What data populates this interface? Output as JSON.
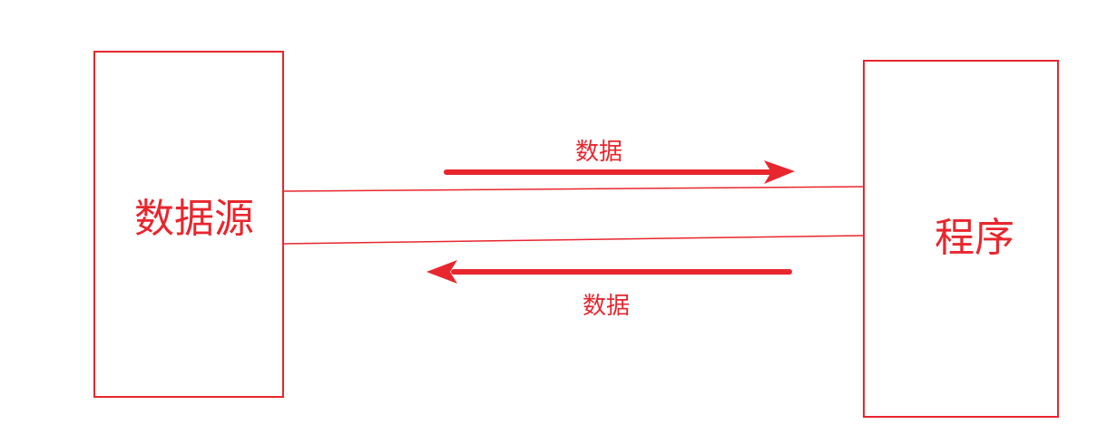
{
  "colors": {
    "accent": "#e8262e",
    "background": "#ffffff"
  },
  "nodes": {
    "source": {
      "label": "数据源"
    },
    "program": {
      "label": "程序"
    }
  },
  "edges": {
    "to_program": {
      "label": "数据"
    },
    "to_source": {
      "label": "数据"
    }
  }
}
